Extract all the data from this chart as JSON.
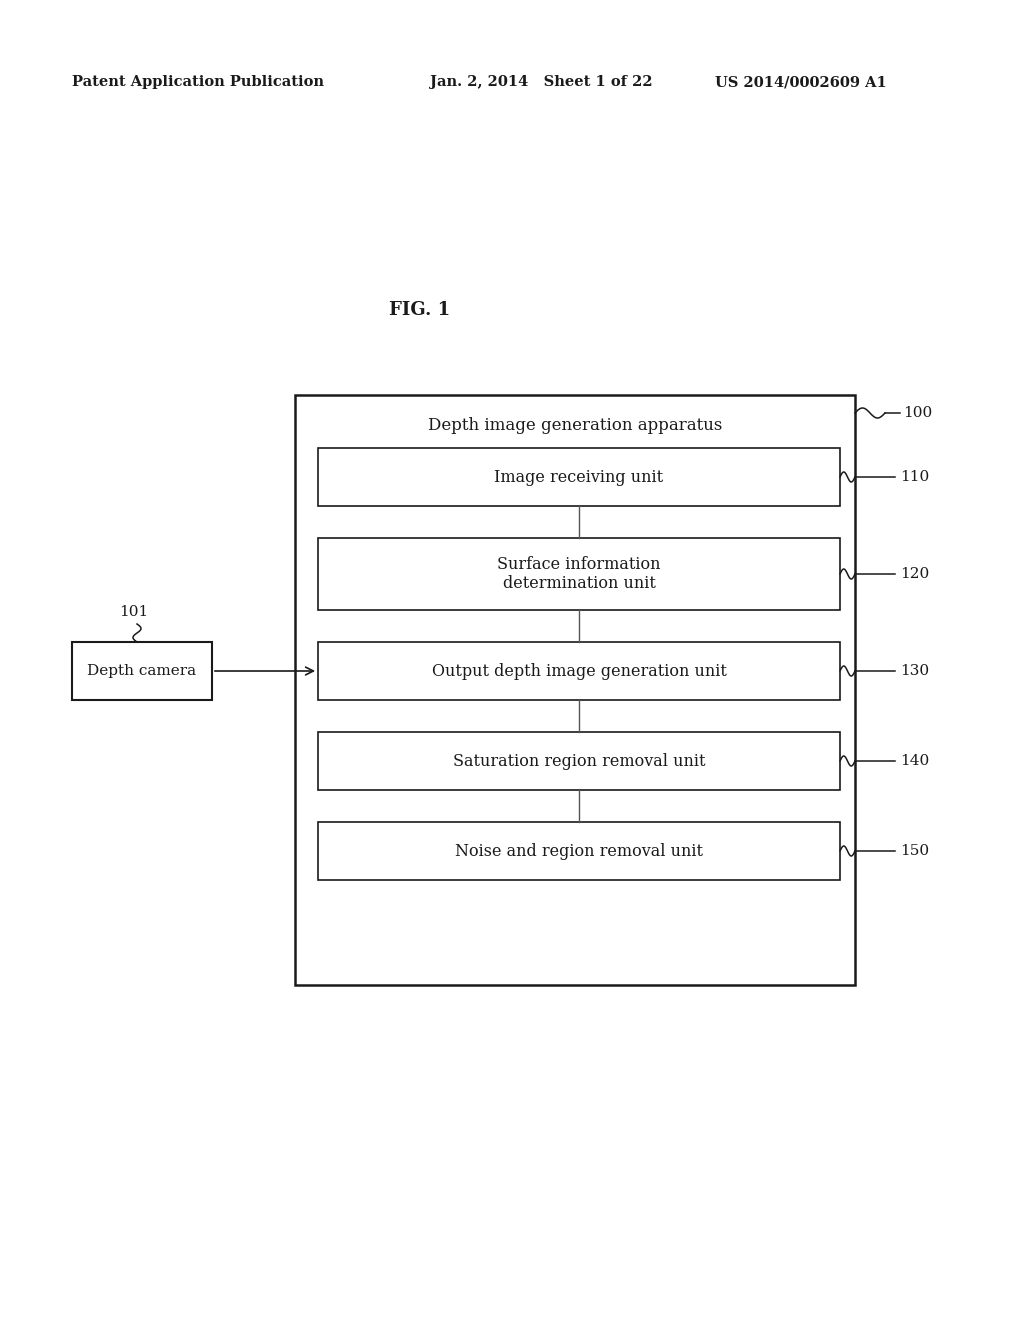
{
  "header_left": "Patent Application Publication",
  "header_mid": "Jan. 2, 2014   Sheet 1 of 22",
  "header_right": "US 2014/0002609 A1",
  "fig_label": "FIG. 1",
  "outer_box_label": "Depth image generation apparatus",
  "outer_box_ref": "100",
  "camera_label": "Depth camera",
  "camera_ref": "101",
  "blocks": [
    {
      "label": "Image receiving unit",
      "ref": "110",
      "two_line": false
    },
    {
      "label": "Surface information\ndetermination unit",
      "ref": "120",
      "two_line": true
    },
    {
      "label": "Output depth image generation unit",
      "ref": "130",
      "two_line": false
    },
    {
      "label": "Saturation region removal unit",
      "ref": "140",
      "two_line": false
    },
    {
      "label": "Noise and region removal unit",
      "ref": "150",
      "two_line": false
    }
  ],
  "bg_color": "#ffffff",
  "line_color": "#1a1a1a",
  "text_color": "#1a1a1a",
  "header_fontsize": 10.5,
  "fig_label_fontsize": 13,
  "block_fontsize": 11.5,
  "ref_fontsize": 11,
  "outer_label_fontsize": 12
}
